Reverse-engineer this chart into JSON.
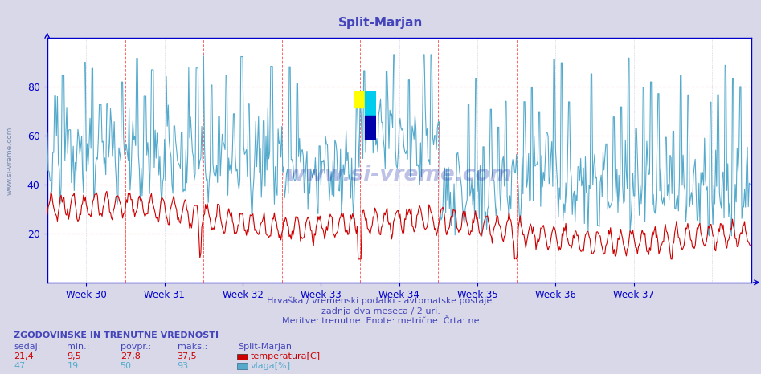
{
  "title": "Split-Marjan",
  "title_color": "#4444bb",
  "bg_color": "#d8d8e8",
  "plot_bg_color": "#ffffff",
  "grid_h_color": "#ffaaaa",
  "grid_v_color": "#aaaacc",
  "axis_color": "#0000cc",
  "temp_color": "#cc0000",
  "humid_color": "#55aacc",
  "ylim": [
    0,
    100
  ],
  "yticks": [
    20,
    40,
    60,
    80
  ],
  "week_labels": [
    "Week 30",
    "Week 31",
    "Week 32",
    "Week 33",
    "Week 34",
    "Week 35",
    "Week 36",
    "Week 37"
  ],
  "n_points": 756,
  "subtitle1": "Hrvaška / vremenski podatki - avtomatske postaje.",
  "subtitle2": "zadnja dva meseca / 2 uri.",
  "subtitle3": "Meritve: trenutne  Enote: metrične  Črta: ne",
  "footer_title": "ZGODOVINSKE IN TRENUTNE VREDNOSTI",
  "col_sedaj": "sedaj:",
  "col_min": "min.:",
  "col_povpr": "povpr.:",
  "col_maks": "maks.:",
  "col_station": "Split-Marjan",
  "temp_sedaj": "21,4",
  "temp_min": "9,5",
  "temp_povpr": "27,8",
  "temp_maks": "37,5",
  "temp_label": "temperatura[C]",
  "humid_sedaj": "47",
  "humid_min": "19",
  "humid_povpr": "50",
  "humid_maks": "93",
  "humid_label": "vlaga[%]",
  "watermark": "www.si-vreme.com",
  "vline_color": "#ff6666",
  "logo_yellow": "#ffff00",
  "logo_cyan": "#00ccee",
  "logo_blue": "#0000aa"
}
